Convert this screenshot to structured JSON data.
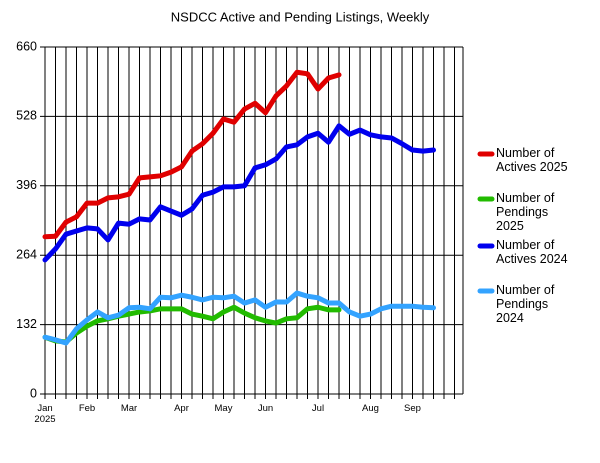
{
  "chart_data": {
    "type": "line",
    "title": "NSDCC Active and Pending Listings, Weekly",
    "categories": [
      "Jan 2025",
      null,
      null,
      null,
      "Feb",
      null,
      null,
      null,
      "Mar",
      null,
      null,
      null,
      null,
      "Apr",
      null,
      null,
      null,
      "May",
      null,
      null,
      null,
      "Jun",
      null,
      null,
      null,
      null,
      "Jul",
      null,
      null,
      null,
      null,
      "Aug",
      null,
      null,
      null,
      "Sep",
      null,
      null,
      null,
      null
    ],
    "ylim": [
      0,
      660
    ],
    "yticks": [
      0,
      132,
      264,
      396,
      528,
      660
    ],
    "grid": true,
    "legend": "right",
    "series": [
      {
        "name": "Number of Actives 2025",
        "color": "#e00000",
        "values": [
          299,
          300,
          327,
          337,
          363,
          363,
          373,
          375,
          380,
          411,
          413,
          415,
          422,
          432,
          462,
          476,
          496,
          523,
          517,
          542,
          553,
          535,
          567,
          586,
          612,
          609,
          580,
          601,
          607,
          null,
          null,
          null,
          null,
          null,
          null,
          null,
          null,
          null,
          null,
          null
        ]
      },
      {
        "name": "Number of Pendings 2025",
        "color": "#22bb00",
        "values": [
          108,
          101,
          99,
          116,
          129,
          139,
          143,
          148,
          152,
          156,
          158,
          162,
          162,
          162,
          152,
          148,
          143,
          156,
          165,
          154,
          145,
          139,
          135,
          143,
          145,
          162,
          165,
          160,
          160,
          null,
          null,
          null,
          null,
          null,
          null,
          null,
          null,
          null,
          null,
          null
        ]
      },
      {
        "name": "Number of Actives 2024",
        "color": "#0000ee",
        "values": [
          255,
          276,
          304,
          310,
          316,
          314,
          293,
          325,
          323,
          333,
          331,
          356,
          348,
          340,
          352,
          378,
          384,
          394,
          394,
          396,
          430,
          436,
          447,
          470,
          474,
          489,
          496,
          479,
          510,
          494,
          502,
          493,
          489,
          487,
          476,
          464,
          462,
          464,
          null,
          null
        ]
      },
      {
        "name": "Number of Pendings 2024",
        "color": "#33a3ff",
        "values": [
          108,
          103,
          97,
          124,
          141,
          156,
          145,
          150,
          164,
          165,
          162,
          184,
          183,
          188,
          184,
          179,
          184,
          183,
          186,
          173,
          179,
          165,
          175,
          175,
          192,
          186,
          183,
          173,
          173,
          156,
          148,
          152,
          162,
          167,
          167,
          167,
          165,
          164,
          null,
          null
        ]
      }
    ]
  }
}
